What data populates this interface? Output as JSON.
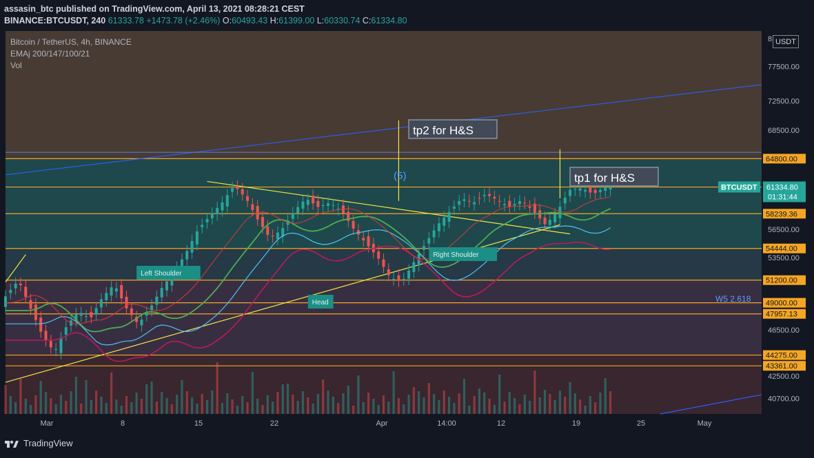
{
  "header": {
    "line1": "assasin_btc published on TradingView.com, April 13, 2021 08:28:21 CEST",
    "symbol": "BINANCE:BTCUSDT, 240",
    "last": "61333.78",
    "change": "+1473.78 (+2.46%)",
    "o_label": "O:",
    "o": "60493.43",
    "h_label": "H:",
    "h": "61399.00",
    "l_label": "L:",
    "l": "60330.74",
    "c_label": "C:",
    "c": "61334.80"
  },
  "legend": {
    "title": "Bitcoin / TetherUS, 4h, BINANCE",
    "ema": "EMAj 200/147/100/21",
    "vol": "Vol"
  },
  "currency": "USDT",
  "price_axis_top_cut": "8",
  "footer": {
    "brand": "TradingView"
  },
  "colors": {
    "background": "#131722",
    "up": "#26a69a",
    "down": "#ef5350",
    "orange_level": "#f5a623",
    "yellow_line": "#f5e642",
    "blue_channel": "#2962ff",
    "ema_green": "#4caf50",
    "ema_red": "#e53935",
    "ema_magenta": "#c2185b",
    "ema_lightblue": "#4fc3f7"
  },
  "chart_data": {
    "type": "candlestick",
    "symbol": "BTCUSDT",
    "timeframe": "4h",
    "x_ticks": [
      "Mar",
      "8",
      "15",
      "22",
      "Apr",
      "14:00",
      "12",
      "19",
      "25",
      "May"
    ],
    "y_ticks": [
      40700,
      42500,
      43361,
      44275,
      46500,
      47957.13,
      49000,
      51200,
      53500,
      54444,
      56500,
      58239.36,
      61330,
      64800,
      68500,
      72500,
      77500
    ],
    "y_range": [
      39500,
      83000
    ],
    "horizontal_levels": [
      64800,
      61330,
      58239.36,
      54444,
      51200,
      49000,
      47957.13,
      44275,
      43361
    ],
    "last_price": {
      "label": "BTCUSDT",
      "value": "61334.80",
      "countdown": "01:31:44"
    },
    "annotations": [
      {
        "text": "tp2 for H&S"
      },
      {
        "text": "tp1 for H&S"
      },
      {
        "text": "(5)"
      },
      {
        "text": "Left Shoulder"
      },
      {
        "text": "Head"
      },
      {
        "text": "Right Shoulder"
      },
      {
        "text": "W5 2.618"
      }
    ],
    "pattern": "Inverse head and shoulders",
    "ema_periods": [
      200,
      147,
      100,
      21
    ],
    "price_path": [
      [
        0,
        49000
      ],
      [
        3,
        51200
      ],
      [
        5,
        48500
      ],
      [
        7,
        46000
      ],
      [
        9,
        44500
      ],
      [
        11,
        46800
      ],
      [
        13,
        48200
      ],
      [
        15,
        47500
      ],
      [
        17,
        49500
      ],
      [
        19,
        50800
      ],
      [
        21,
        48500
      ],
      [
        23,
        47000
      ],
      [
        25,
        48500
      ],
      [
        27,
        50500
      ],
      [
        29,
        52000
      ],
      [
        31,
        54000
      ],
      [
        33,
        56500
      ],
      [
        35,
        58000
      ],
      [
        37,
        59500
      ],
      [
        39,
        61500
      ],
      [
        41,
        60000
      ],
      [
        43,
        57500
      ],
      [
        45,
        55500
      ],
      [
        47,
        56500
      ],
      [
        49,
        58500
      ],
      [
        51,
        60000
      ],
      [
        53,
        59000
      ],
      [
        55,
        59500
      ],
      [
        57,
        58500
      ],
      [
        59,
        56500
      ],
      [
        61,
        55000
      ],
      [
        63,
        53500
      ],
      [
        65,
        51500
      ],
      [
        67,
        51000
      ],
      [
        69,
        53000
      ],
      [
        71,
        55000
      ],
      [
        73,
        57000
      ],
      [
        75,
        58500
      ],
      [
        77,
        60000
      ],
      [
        79,
        59500
      ],
      [
        81,
        60500
      ],
      [
        83,
        59800
      ],
      [
        85,
        59000
      ],
      [
        87,
        59800
      ],
      [
        89,
        58500
      ],
      [
        91,
        57000
      ],
      [
        93,
        58500
      ],
      [
        95,
        61000
      ],
      [
        97,
        61200
      ],
      [
        99,
        60500
      ],
      [
        101,
        61334.8
      ]
    ]
  }
}
